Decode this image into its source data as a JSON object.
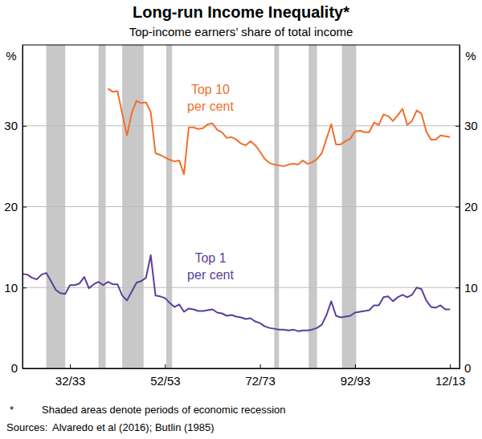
{
  "chart_data": {
    "type": "line",
    "title": "Long-run Income Inequality*",
    "subtitle": "Top-income earners’ share of total income",
    "y_label": "%",
    "x": [
      1922,
      1923,
      1924,
      1925,
      1926,
      1927,
      1928,
      1929,
      1930,
      1931,
      1932,
      1933,
      1934,
      1935,
      1936,
      1937,
      1938,
      1939,
      1940,
      1941,
      1942,
      1943,
      1944,
      1945,
      1946,
      1947,
      1948,
      1949,
      1950,
      1951,
      1952,
      1953,
      1954,
      1955,
      1956,
      1957,
      1958,
      1959,
      1960,
      1961,
      1962,
      1963,
      1964,
      1965,
      1966,
      1967,
      1968,
      1969,
      1970,
      1971,
      1972,
      1973,
      1974,
      1975,
      1976,
      1977,
      1978,
      1979,
      1980,
      1981,
      1982,
      1983,
      1984,
      1985,
      1986,
      1987,
      1988,
      1989,
      1990,
      1991,
      1992,
      1993,
      1994,
      1995,
      1996,
      1997,
      1998,
      1999,
      2000,
      2001,
      2002,
      2003,
      2004,
      2005,
      2006,
      2007,
      2008,
      2009,
      2010,
      2011,
      2012
    ],
    "xlim": [
      1922,
      2014
    ],
    "xticks": [
      {
        "value": 1932,
        "label": "32/33"
      },
      {
        "value": 1952,
        "label": "52/53"
      },
      {
        "value": 1972,
        "label": "72/73"
      },
      {
        "value": 1992,
        "label": "92/93"
      },
      {
        "value": 2012,
        "label": "12/13"
      }
    ],
    "ylim": [
      0,
      40
    ],
    "yticks": [
      0,
      10,
      20,
      30
    ],
    "grid": true,
    "series": [
      {
        "name": "Top 10 per cent",
        "color": "#f26f2c",
        "values": [
          null,
          null,
          null,
          null,
          null,
          null,
          null,
          null,
          null,
          null,
          null,
          null,
          null,
          null,
          null,
          null,
          null,
          null,
          34.6,
          34.2,
          34.3,
          31.5,
          28.8,
          31.6,
          33.1,
          32.8,
          32.9,
          31.7,
          26.6,
          26.4,
          26.1,
          25.8,
          25.6,
          25.7,
          24.0,
          29.8,
          29.8,
          29.6,
          29.7,
          30.2,
          30.3,
          29.5,
          29.2,
          28.5,
          28.6,
          28.3,
          27.8,
          27.6,
          28.1,
          27.6,
          26.8,
          25.9,
          25.4,
          25.2,
          25.1,
          25.0,
          25.2,
          25.3,
          25.2,
          25.7,
          25.3,
          25.5,
          25.9,
          26.6,
          28.4,
          30.2,
          27.7,
          27.7,
          28.1,
          28.4,
          29.3,
          29.4,
          29.2,
          29.2,
          30.4,
          30.1,
          31.4,
          31.2,
          30.6,
          31.3,
          32.1,
          30.1,
          30.6,
          31.9,
          31.5,
          29.3,
          28.3,
          28.3,
          28.8,
          28.7,
          28.6
        ]
      },
      {
        "name": "Top 1 per cent",
        "color": "#5c3f99",
        "values": [
          11.7,
          11.6,
          11.2,
          11.0,
          11.6,
          11.8,
          10.8,
          9.7,
          9.3,
          9.2,
          10.3,
          10.3,
          10.5,
          11.3,
          9.9,
          10.4,
          10.7,
          10.3,
          10.7,
          10.4,
          10.4,
          9.0,
          8.4,
          9.5,
          10.6,
          10.8,
          11.2,
          14.0,
          9.0,
          8.9,
          8.7,
          8.1,
          7.6,
          7.9,
          7.0,
          7.4,
          7.3,
          7.1,
          7.1,
          7.2,
          7.3,
          6.9,
          6.8,
          6.5,
          6.6,
          6.4,
          6.3,
          6.1,
          6.2,
          5.8,
          5.6,
          5.2,
          5.0,
          4.9,
          4.8,
          4.8,
          4.7,
          4.8,
          4.6,
          4.7,
          4.7,
          4.8,
          5.0,
          5.4,
          6.6,
          8.3,
          6.5,
          6.3,
          6.4,
          6.5,
          6.9,
          7.0,
          7.1,
          7.2,
          7.8,
          7.8,
          8.8,
          8.9,
          8.3,
          8.8,
          9.1,
          8.8,
          9.1,
          10.0,
          9.8,
          8.4,
          7.6,
          7.5,
          7.8,
          7.3,
          7.3
        ]
      }
    ],
    "recessions": [
      [
        1927,
        1931
      ],
      [
        1938,
        1939.5
      ],
      [
        1943,
        1947.5
      ],
      [
        1952.25,
        1953.5
      ],
      [
        1975,
        1976
      ],
      [
        1982.25,
        1984
      ],
      [
        1989.25,
        1992.25
      ]
    ],
    "notes": [
      {
        "label": "*",
        "text": "Shaded areas denote periods of economic recession"
      },
      {
        "label": "Sources:",
        "text": "Alvaredo et al (2016); Butlin (1985)"
      }
    ]
  }
}
